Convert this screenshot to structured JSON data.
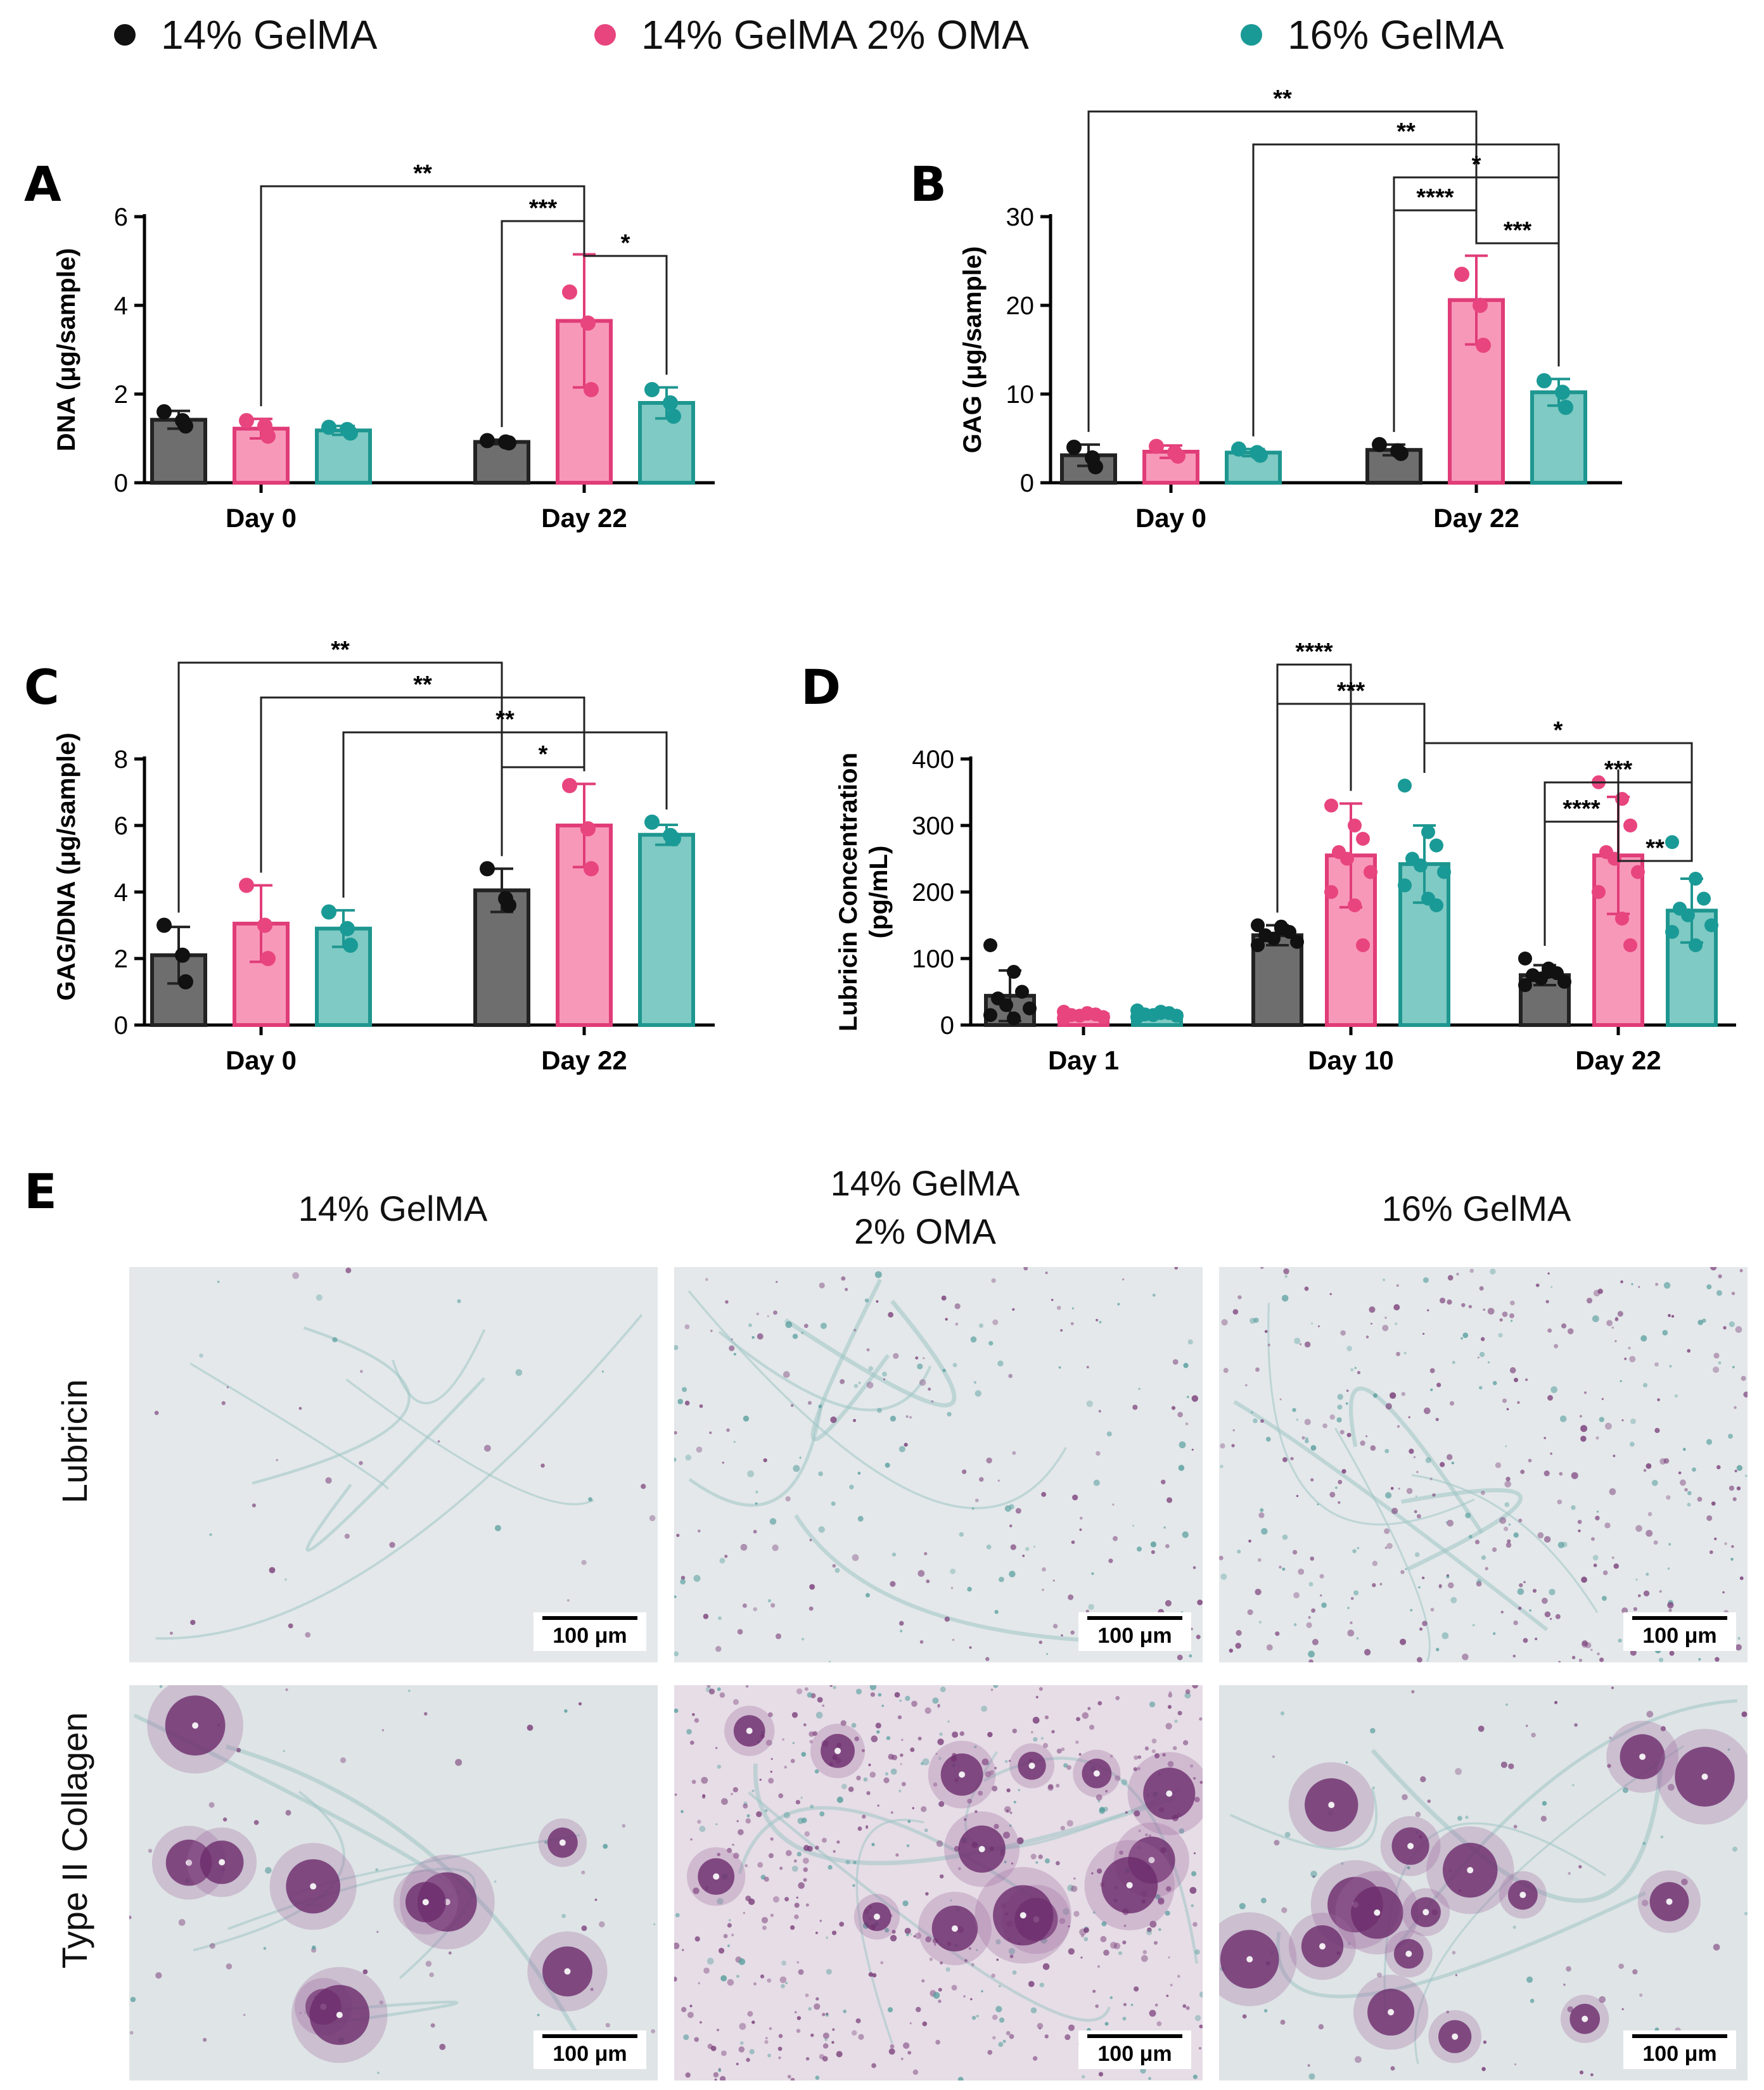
{
  "colors": {
    "group1": "#111111",
    "group2": "#e8457e",
    "group3": "#1a9a96",
    "bar1": "#6e6e6e",
    "bar2": "#f898b8",
    "bar3": "#7fcac4",
    "line2": "#e03c78",
    "line3": "#1e9690"
  },
  "legend": [
    {
      "label": "14% GelMA",
      "color": "#111111"
    },
    {
      "label": "14% GelMA 2% OMA",
      "color": "#e8457e"
    },
    {
      "label": "16% GelMA",
      "color": "#1a9a96"
    }
  ],
  "panels": {
    "A": "A",
    "B": "B",
    "C": "C",
    "D": "D",
    "E": "E"
  },
  "chart_data": [
    {
      "id": "A",
      "type": "bar",
      "ylabel": "DNA (μg/sample)",
      "ylim": [
        0,
        6
      ],
      "yticks": [
        "0",
        "2",
        "4",
        "6"
      ],
      "categories": [
        "Day 0",
        "Day 22"
      ],
      "series": [
        {
          "name": "14% GelMA",
          "values": [
            1.42,
            0.92
          ],
          "err": [
            0.2,
            0.05
          ],
          "points": [
            [
              1.6,
              1.4,
              1.28
            ],
            [
              0.95,
              0.92,
              0.9
            ]
          ]
        },
        {
          "name": "14% GelMA 2% OMA",
          "values": [
            1.22,
            3.65
          ],
          "err": [
            0.22,
            1.5
          ],
          "points": [
            [
              1.4,
              1.28,
              1.05
            ],
            [
              4.3,
              3.6,
              2.1
            ]
          ]
        },
        {
          "name": "16% GelMA",
          "values": [
            1.18,
            1.8
          ],
          "err": [
            0.1,
            0.35
          ],
          "points": [
            [
              1.25,
              1.2,
              1.12
            ],
            [
              2.1,
              1.8,
              1.5
            ]
          ]
        }
      ],
      "significance": [
        {
          "label": "**",
          "from": [
            0,
            1
          ],
          "to": [
            1,
            1
          ]
        },
        {
          "label": "***",
          "from": [
            1,
            0
          ],
          "to": [
            1,
            1
          ]
        },
        {
          "label": "*",
          "from": [
            1,
            1
          ],
          "to": [
            1,
            2
          ]
        }
      ]
    },
    {
      "id": "B",
      "type": "bar",
      "ylabel": "GAG (μg/sample)",
      "ylim": [
        0,
        30
      ],
      "yticks": [
        "0",
        "10",
        "20",
        "30"
      ],
      "categories": [
        "Day 0",
        "Day 22"
      ],
      "series": [
        {
          "name": "14% GelMA",
          "values": [
            3.1,
            3.7
          ],
          "err": [
            1.2,
            0.6
          ],
          "points": [
            [
              4.0,
              2.8,
              1.8
            ],
            [
              4.3,
              3.6,
              3.3
            ]
          ]
        },
        {
          "name": "14% GelMA 2% OMA",
          "values": [
            3.5,
            20.6
          ],
          "err": [
            0.7,
            5.0
          ],
          "points": [
            [
              4.1,
              3.4,
              3.0
            ],
            [
              23.5,
              20.0,
              15.5
            ]
          ]
        },
        {
          "name": "16% GelMA",
          "values": [
            3.4,
            10.2
          ],
          "err": [
            0.4,
            1.5
          ],
          "points": [
            [
              3.8,
              3.4,
              3.1
            ],
            [
              11.5,
              10.2,
              8.5
            ]
          ]
        }
      ],
      "significance": [
        {
          "label": "**",
          "from": [
            0,
            0
          ],
          "to": [
            1,
            1
          ]
        },
        {
          "label": "**",
          "from": [
            0,
            2
          ],
          "to": [
            1,
            2
          ]
        },
        {
          "label": "*",
          "from": [
            1,
            0
          ],
          "to": [
            1,
            2
          ]
        },
        {
          "label": "****",
          "from": [
            1,
            0
          ],
          "to": [
            1,
            1
          ]
        },
        {
          "label": "***",
          "from": [
            1,
            1
          ],
          "to": [
            1,
            2
          ]
        }
      ]
    },
    {
      "id": "C",
      "type": "bar",
      "ylabel": "GAG/DNA (μg/sample)",
      "ylim": [
        0,
        8
      ],
      "yticks": [
        "0",
        "2",
        "4",
        "6",
        "8"
      ],
      "categories": [
        "Day 0",
        "Day 22"
      ],
      "series": [
        {
          "name": "14% GelMA",
          "values": [
            2.1,
            4.05
          ],
          "err": [
            0.85,
            0.65
          ],
          "points": [
            [
              3.0,
              2.1,
              1.3
            ],
            [
              4.7,
              3.8,
              3.6
            ]
          ]
        },
        {
          "name": "14% GelMA 2% OMA",
          "values": [
            3.05,
            6.0
          ],
          "err": [
            1.15,
            1.25
          ],
          "points": [
            [
              4.2,
              3.0,
              2.0
            ],
            [
              7.2,
              5.9,
              4.7
            ]
          ]
        },
        {
          "name": "16% GelMA",
          "values": [
            2.9,
            5.72
          ],
          "err": [
            0.55,
            0.3
          ],
          "points": [
            [
              3.4,
              2.9,
              2.4
            ],
            [
              6.1,
              5.7,
              5.6
            ]
          ]
        }
      ],
      "significance": [
        {
          "label": "**",
          "from": [
            0,
            0
          ],
          "to": [
            1,
            0
          ]
        },
        {
          "label": "**",
          "from": [
            0,
            1
          ],
          "to": [
            1,
            1
          ]
        },
        {
          "label": "**",
          "from": [
            0,
            2
          ],
          "to": [
            1,
            2
          ]
        },
        {
          "label": "*",
          "from": [
            1,
            0
          ],
          "to": [
            1,
            1
          ]
        }
      ]
    },
    {
      "id": "D",
      "type": "bar",
      "ylabel": "Lubricin Concentration (pg/mL)",
      "ylabel_lines": [
        "Lubricin Concentration",
        "(pg/mL)"
      ],
      "ylim": [
        0,
        400
      ],
      "yticks": [
        "0",
        "100",
        "200",
        "300",
        "400"
      ],
      "categories": [
        "Day 1",
        "Day 10",
        "Day 22"
      ],
      "series": [
        {
          "name": "14% GelMA",
          "values": [
            44,
            135,
            75
          ],
          "err": [
            38,
            15,
            15
          ],
          "points": [
            [
              120,
              80,
              50,
              40,
              30,
              25,
              15,
              10
            ],
            [
              150,
              145,
              140,
              135,
              130,
              125,
              120,
              148
            ],
            [
              100,
              85,
              78,
              75,
              70,
              65,
              60,
              80
            ]
          ]
        },
        {
          "name": "14% GelMA 2% OMA",
          "values": [
            16,
            255,
            255
          ],
          "err": [
            5,
            78,
            88
          ],
          "points": [
            [
              20,
              18,
              16,
              15,
              14,
              12,
              10,
              17
            ],
            [
              330,
              300,
              280,
              260,
              250,
              230,
              200,
              180,
              120
            ],
            [
              365,
              340,
              300,
              260,
              250,
              230,
              200,
              160,
              120
            ]
          ]
        },
        {
          "name": "16% GelMA",
          "values": [
            17,
            242,
            172
          ],
          "err": [
            5,
            58,
            48
          ],
          "points": [
            [
              22,
              20,
              18,
              16,
              15,
              14,
              12,
              18
            ],
            [
              360,
              290,
              270,
              250,
              240,
              230,
              210,
              190,
              180
            ],
            [
              275,
              220,
              190,
              175,
              165,
              150,
              140,
              120
            ]
          ]
        }
      ],
      "significance": [
        {
          "label": "****",
          "from": [
            1,
            0
          ],
          "to": [
            1,
            1
          ]
        },
        {
          "label": "***",
          "from": [
            1,
            0
          ],
          "to": [
            1,
            2
          ]
        },
        {
          "label": "*",
          "from": [
            1,
            2
          ],
          "to": [
            2,
            2
          ]
        },
        {
          "label": "***",
          "from": [
            2,
            0
          ],
          "to": [
            2,
            2
          ]
        },
        {
          "label": "****",
          "from": [
            2,
            0
          ],
          "to": [
            2,
            1
          ]
        },
        {
          "label": "**",
          "from": [
            2,
            1
          ],
          "to": [
            2,
            2
          ]
        }
      ]
    }
  ],
  "histology": {
    "columns": [
      "14% GelMA",
      "14% GelMA\n2% OMA",
      "16% GelMA"
    ],
    "rows": [
      "Lubricin",
      "Type II Collagen"
    ],
    "scalebar_label": "100 μm"
  }
}
